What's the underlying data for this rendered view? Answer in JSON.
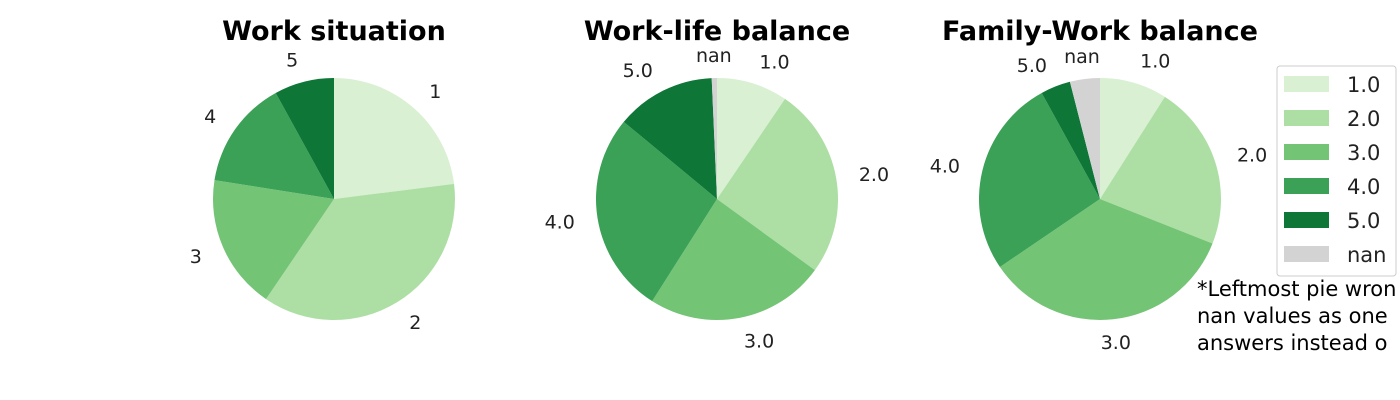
{
  "colors": {
    "1": "#d9f0d3",
    "2": "#addfa4",
    "3": "#74c476",
    "4": "#3aa156",
    "5": "#0e7636",
    "nan": "#d3d3d3"
  },
  "chart_data": [
    {
      "type": "pie",
      "title": "Work situation",
      "slices": [
        {
          "label": "1",
          "key": "1",
          "value": 23.0
        },
        {
          "label": "2",
          "key": "2",
          "value": 36.5
        },
        {
          "label": "3",
          "key": "3",
          "value": 18.0
        },
        {
          "label": "4",
          "key": "4",
          "value": 14.5
        },
        {
          "label": "5",
          "key": "5",
          "value": 8.0
        }
      ]
    },
    {
      "type": "pie",
      "title": "Work-life balance",
      "slices": [
        {
          "label": "1.0",
          "key": "1",
          "value": 9.5
        },
        {
          "label": "2.0",
          "key": "2",
          "value": 25.5
        },
        {
          "label": "3.0",
          "key": "3",
          "value": 24.0
        },
        {
          "label": "4.0",
          "key": "4",
          "value": 27.0
        },
        {
          "label": "5.0",
          "key": "5",
          "value": 13.3
        },
        {
          "label": "nan",
          "key": "nan",
          "value": 0.7
        }
      ]
    },
    {
      "type": "pie",
      "title": "Family-Work balance",
      "slices": [
        {
          "label": "1.0",
          "key": "1",
          "value": 9.0
        },
        {
          "label": "2.0",
          "key": "2",
          "value": 22.0
        },
        {
          "label": "3.0",
          "key": "3",
          "value": 34.5
        },
        {
          "label": "4.0",
          "key": "4",
          "value": 26.5
        },
        {
          "label": "5.0",
          "key": "5",
          "value": 4.0
        },
        {
          "label": "nan",
          "key": "nan",
          "value": 4.0
        }
      ]
    }
  ],
  "legend": {
    "placement": "right",
    "entries": [
      {
        "label": "1.0",
        "key": "1"
      },
      {
        "label": "2.0",
        "key": "2"
      },
      {
        "label": "3.0",
        "key": "3"
      },
      {
        "label": "4.0",
        "key": "4"
      },
      {
        "label": "5.0",
        "key": "5"
      },
      {
        "label": "nan",
        "key": "nan"
      }
    ]
  },
  "note": {
    "lines": [
      "*Leftmost pie wron",
      "nan values as one",
      "answers instead o"
    ]
  }
}
